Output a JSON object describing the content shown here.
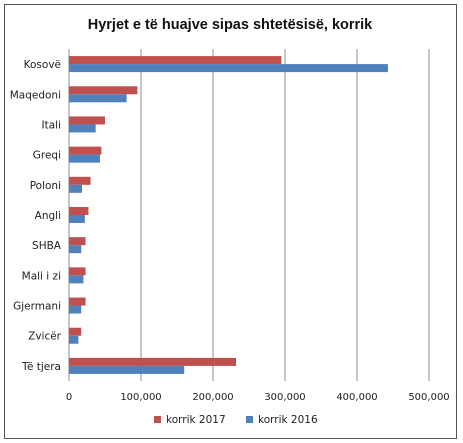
{
  "chart_data": {
    "type": "bar",
    "orientation": "horizontal",
    "title": "Hyrjet e të huajve sipas shtetësisë, korrik",
    "categories": [
      "Kosovë",
      "Maqedoni",
      "Itali",
      "Greqi",
      "Poloni",
      "Angli",
      "SHBA",
      "Mali i zi",
      "Gjermani",
      "Zvicër",
      "Të tjera"
    ],
    "series": [
      {
        "name": "korrik 2017",
        "color": "#c0504d",
        "values": [
          295000,
          95000,
          50000,
          45000,
          30000,
          27000,
          23000,
          23000,
          23000,
          17000,
          232000
        ]
      },
      {
        "name": "korrik 2016",
        "color": "#4f81bd",
        "values": [
          443000,
          80000,
          37000,
          43000,
          18000,
          22000,
          17000,
          20000,
          17000,
          13000,
          160000
        ]
      }
    ],
    "xlim": [
      0,
      500000
    ],
    "xticks": [
      "0",
      "100,000",
      "200,000",
      "300,000",
      "400,000",
      "500,000"
    ],
    "grid": true,
    "legend": "bottom"
  }
}
